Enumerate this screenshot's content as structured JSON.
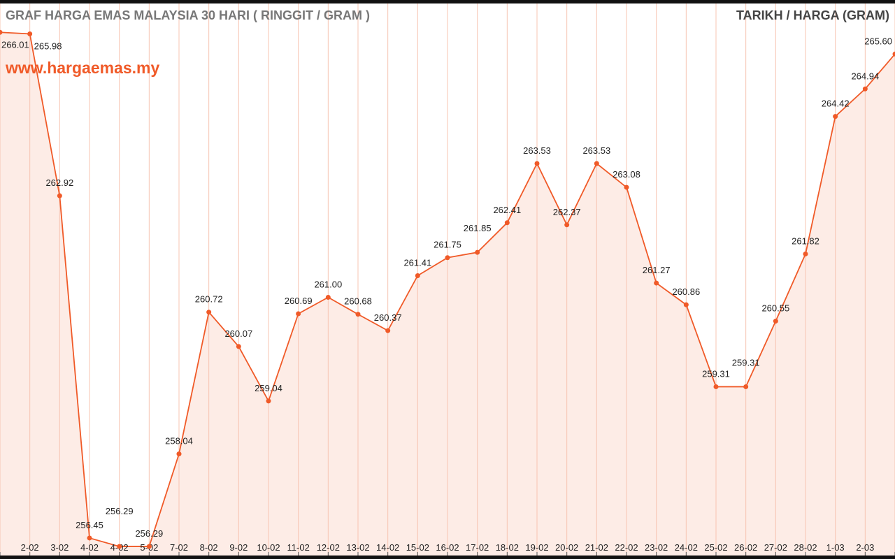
{
  "chart_data": {
    "type": "area",
    "title": "GRAF HARGA EMAS MALAYSIA 30 HARI ( RINGGIT / GRAM )",
    "subtitle": "www.hargaemas.my",
    "legend_label": "TARIKH / HARGA (GRAM)",
    "legend_position": "top-right",
    "grid": "vertical",
    "categories": [
      "",
      "2-02",
      "3-02",
      "4-02",
      "4-02",
      "5-02",
      "7-02",
      "8-02",
      "9-02",
      "10-02",
      "11-02",
      "12-02",
      "13-02",
      "14-02",
      "15-02",
      "16-02",
      "17-02",
      "18-02",
      "19-02",
      "20-02",
      "21-02",
      "22-02",
      "23-02",
      "24-02",
      "25-02",
      "26-02",
      "27-02",
      "28-02",
      "1-03",
      "2-03",
      ""
    ],
    "values": [
      266.01,
      265.98,
      262.92,
      256.45,
      256.29,
      256.29,
      258.04,
      260.72,
      260.07,
      259.04,
      260.69,
      261.0,
      260.68,
      260.37,
      261.41,
      261.75,
      261.85,
      262.41,
      263.53,
      262.37,
      263.53,
      263.08,
      261.27,
      260.86,
      259.31,
      259.31,
      260.55,
      261.82,
      264.42,
      264.94,
      265.6
    ],
    "colors": {
      "line": "#f05a28",
      "fill": "#fdece6",
      "grid": "#f7c4b2"
    }
  }
}
